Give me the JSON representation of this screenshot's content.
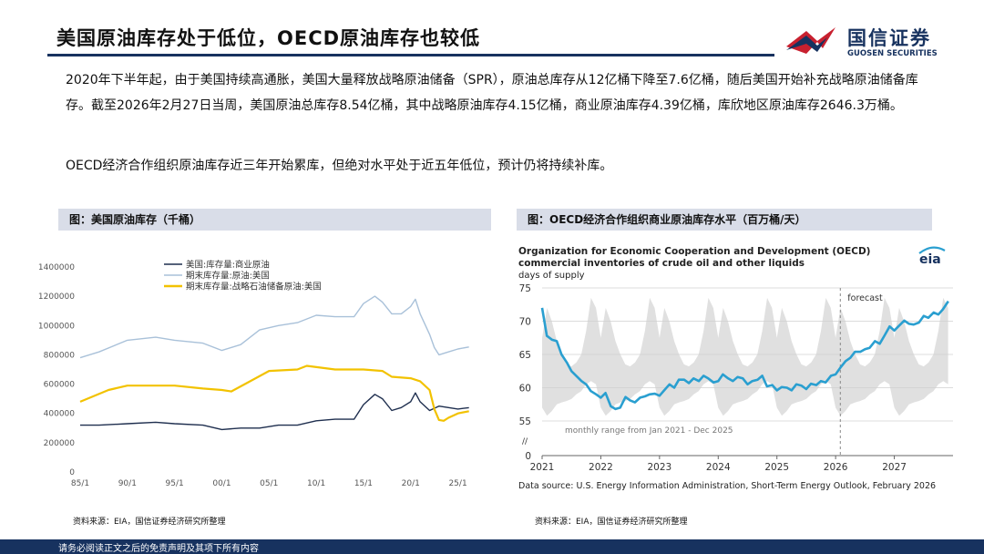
{
  "page": {
    "title": "美国原油库存处于低位，OECD原油库存也较低",
    "logo_cn": "国信证券",
    "logo_en": "GUOSEN SECURITIES",
    "para1": "2020年下半年起，由于美国持续高通胀，美国大量释放战略原油储备（SPR），原油总库存从12亿桶下降至7.6亿桶，随后美国开始补充战略原油储备库存。截至2026年2月27日当周，美国原油总库存8.54亿桶，其中战略原油库存4.15亿桶，商业原油库存4.39亿桶，库欣地区原油库存2646.3万桶。",
    "para2": "OECD经济合作组织原油库存近三年开始累库，但绝对水平处于近五年低位，预计仍将持续补库。",
    "footer": "请务必阅读正文之后的免责声明及其项下所有内容",
    "colors": {
      "navy": "#17325f",
      "brand_red": "#c8202f",
      "caption_bg": "#d9dde8"
    }
  },
  "chart_data": [
    {
      "type": "line",
      "caption": "图：美国原油库存（千桶）",
      "source": "资料来源：EIA，国信证券经济研究所整理",
      "x_tick_labels": [
        "85/1",
        "90/1",
        "95/1",
        "00/1",
        "05/1",
        "10/1",
        "15/1",
        "20/1",
        "25/1"
      ],
      "x_tick_years": [
        1985,
        1990,
        1995,
        2000,
        2005,
        2010,
        2015,
        2020,
        2025
      ],
      "xlim": [
        1985,
        2026.2
      ],
      "y_ticks": [
        0,
        200000,
        400000,
        600000,
        800000,
        1000000,
        1200000,
        1400000
      ],
      "ylim": [
        0,
        1400000
      ],
      "legend_position": "top-center",
      "series": [
        {
          "name": "美国:库存量:商业原油",
          "color": "#1f2f4f",
          "x": [
            1985,
            1987,
            1990,
            1993,
            1995,
            1998,
            2000,
            2002,
            2004,
            2006,
            2008,
            2010,
            2012,
            2014,
            2015,
            2016.2,
            2017,
            2018,
            2019,
            2020,
            2020.5,
            2021,
            2022,
            2023,
            2024,
            2025,
            2026.17
          ],
          "y": [
            320000,
            320000,
            330000,
            340000,
            330000,
            320000,
            290000,
            300000,
            300000,
            320000,
            320000,
            350000,
            360000,
            360000,
            460000,
            530000,
            500000,
            420000,
            440000,
            480000,
            540000,
            480000,
            420000,
            450000,
            440000,
            430000,
            439000
          ]
        },
        {
          "name": "期末库存量:原油:美国",
          "color": "#a9c1d9",
          "x": [
            1985,
            1987,
            1990,
            1993,
            1995,
            1998,
            2000,
            2002,
            2004,
            2006,
            2008,
            2010,
            2012,
            2014,
            2015,
            2016.2,
            2017,
            2018,
            2019,
            2020,
            2020.5,
            2021,
            2022,
            2022.5,
            2023,
            2024,
            2025,
            2026.17
          ],
          "y": [
            780000,
            820000,
            900000,
            920000,
            900000,
            880000,
            830000,
            870000,
            970000,
            1000000,
            1020000,
            1070000,
            1060000,
            1060000,
            1150000,
            1200000,
            1160000,
            1080000,
            1080000,
            1130000,
            1180000,
            1080000,
            940000,
            850000,
            800000,
            820000,
            840000,
            854000
          ]
        },
        {
          "name": "期末库存量:战略石油储备原油:美国",
          "color": "#f2c200",
          "x": [
            1985,
            1988,
            1990,
            1995,
            1998,
            2000,
            2001,
            2003,
            2005,
            2008,
            2009,
            2012,
            2015,
            2017,
            2018,
            2020,
            2021,
            2022,
            2022.5,
            2023,
            2023.5,
            2024,
            2025,
            2026.17
          ],
          "y": [
            480000,
            560000,
            590000,
            590000,
            570000,
            560000,
            550000,
            620000,
            690000,
            700000,
            725000,
            700000,
            700000,
            690000,
            650000,
            640000,
            620000,
            560000,
            430000,
            355000,
            350000,
            370000,
            400000,
            415000
          ]
        }
      ]
    },
    {
      "type": "line",
      "caption": "图：OECD经济合作组织商业原油库存水平（百万桶/天）",
      "source": "资料来源：EIA，国信证券经济研究所整理",
      "title": "Organization for Economic Cooperation and Development (OECD)",
      "subtitle": "commercial inventories of crude oil and other liquids",
      "ylabel": "days of supply",
      "brand": "eia",
      "forecast_label": "forecast",
      "range_label": "monthly range from Jan 2021 - Dec 2025",
      "data_source": "Data source: U.S. Energy Information Administration, Short-Term Energy Outlook, February 2026",
      "axis_break_label": "//",
      "x_tick_labels": [
        "2021",
        "2022",
        "2023",
        "2024",
        "2025",
        "2026",
        "2027"
      ],
      "x_tick_years": [
        2021,
        2022,
        2023,
        2024,
        2025,
        2026,
        2027
      ],
      "xlim": [
        2021,
        2028
      ],
      "y_ticks": [
        55,
        60,
        65,
        70,
        75
      ],
      "y_ticks_labels": [
        "0",
        "55",
        "60",
        "65",
        "70",
        "75"
      ],
      "ylim": [
        53,
        75
      ],
      "forecast_start": 2026.08,
      "band_color": "#e0e0e0",
      "line_color": "#2a9fd0",
      "band": {
        "upper": [
          67.5,
          72.0,
          70.0,
          67.0,
          65.0,
          63.5,
          63.2,
          63.8,
          65.0,
          68.5,
          73.5,
          72.0
        ],
        "lower": [
          57.0,
          55.8,
          56.5,
          57.5,
          57.8,
          58.0,
          58.3,
          59.0,
          59.5,
          60.5,
          61.0,
          60.5
        ]
      },
      "series": [
        {
          "name": "",
          "x": [
            2021.0,
            2021.08,
            2021.17,
            2021.25,
            2021.33,
            2021.42,
            2021.5,
            2021.58,
            2021.67,
            2021.75,
            2021.83,
            2021.92,
            2022.0,
            2022.08,
            2022.17,
            2022.25,
            2022.33,
            2022.42,
            2022.5,
            2022.58,
            2022.67,
            2022.75,
            2022.83,
            2022.92,
            2023.0,
            2023.08,
            2023.17,
            2023.25,
            2023.33,
            2023.42,
            2023.5,
            2023.58,
            2023.67,
            2023.75,
            2023.83,
            2023.92,
            2024.0,
            2024.08,
            2024.17,
            2024.25,
            2024.33,
            2024.42,
            2024.5,
            2024.58,
            2024.67,
            2024.75,
            2024.83,
            2024.92,
            2025.0,
            2025.08,
            2025.17,
            2025.25,
            2025.33,
            2025.42,
            2025.5,
            2025.58,
            2025.67,
            2025.75,
            2025.83,
            2025.92,
            2026.0,
            2026.08,
            2026.17,
            2026.25,
            2026.33,
            2026.42,
            2026.5,
            2026.58,
            2026.67,
            2026.75,
            2026.83,
            2026.92,
            2027.0,
            2027.08,
            2027.17,
            2027.25,
            2027.33,
            2027.42,
            2027.5,
            2027.58,
            2027.67,
            2027.75,
            2027.83,
            2027.92
          ],
          "values": [
            72.0,
            67.8,
            67.2,
            67.0,
            65.0,
            63.8,
            62.5,
            61.8,
            61.0,
            60.5,
            59.5,
            59.0,
            58.5,
            59.2,
            57.2,
            56.8,
            57.0,
            58.6,
            58.1,
            57.8,
            58.5,
            58.7,
            59.0,
            59.1,
            58.8,
            59.6,
            60.5,
            60.0,
            61.2,
            61.2,
            60.7,
            61.4,
            61.0,
            61.8,
            61.4,
            60.8,
            61.0,
            62.0,
            61.4,
            61.0,
            61.6,
            61.4,
            60.5,
            61.0,
            61.2,
            61.8,
            60.2,
            60.4,
            59.6,
            60.1,
            60.0,
            59.6,
            60.5,
            60.3,
            59.8,
            60.6,
            60.4,
            61.0,
            60.8,
            61.8,
            62.0,
            63.0,
            64.0,
            64.5,
            65.4,
            65.4,
            65.8,
            66.0,
            67.0,
            66.6,
            67.8,
            69.2,
            68.6,
            69.3,
            70.1,
            69.6,
            69.5,
            69.8,
            70.8,
            70.5,
            71.3,
            71.0,
            71.8,
            73.0
          ]
        }
      ]
    }
  ]
}
